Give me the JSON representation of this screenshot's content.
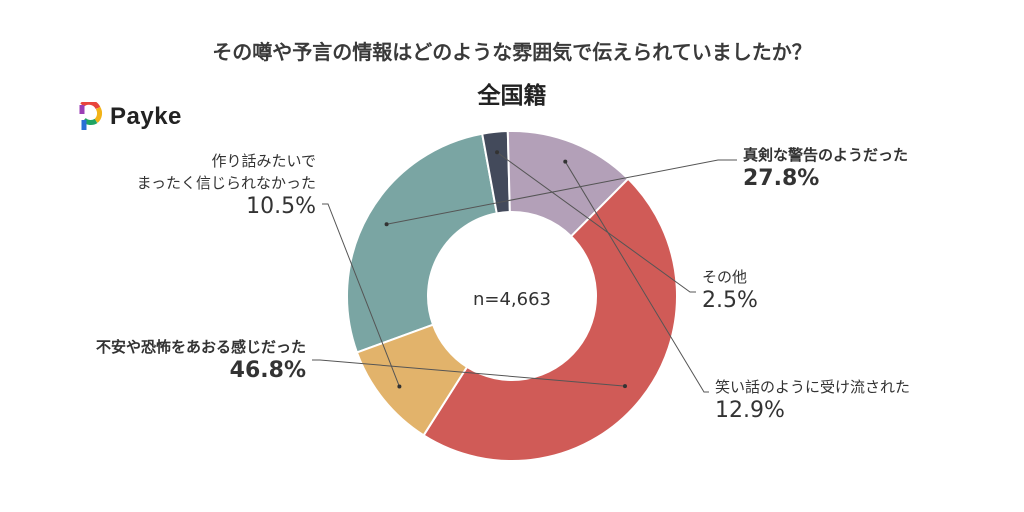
{
  "header": {
    "title": "その噂や予言の情報はどのような雰囲気で伝えられていましたか？",
    "subtitle": "全国籍"
  },
  "brand": {
    "name": "Payke",
    "icon": "payke-logo-icon"
  },
  "chart_data": {
    "type": "pie",
    "donut": true,
    "center_text": "n=4,663",
    "slices": [
      {
        "label": "真剣な警告のようだった",
        "value": 27.8,
        "value_text": "27.8%",
        "color": "#7aa5a3",
        "bold": true
      },
      {
        "label": "その他",
        "value": 2.5,
        "value_text": "2.5%",
        "color": "#434a5b",
        "bold": false
      },
      {
        "label": "笑い話のように受け流された",
        "value": 12.9,
        "value_text": "12.9%",
        "color": "#b3a0b8",
        "bold": false
      },
      {
        "label": "不安や恐怖をあおる感じだった",
        "value": 46.8,
        "value_text": "46.8%",
        "color": "#d05b57",
        "bold": true
      },
      {
        "label": "作り話みたいでまったく信じられなかった",
        "label_lines": [
          "作り話みたいで",
          "まったく信じられなかった"
        ],
        "value": 10.5,
        "value_text": "10.5%",
        "color": "#e2b36b",
        "bold": false
      }
    ]
  }
}
